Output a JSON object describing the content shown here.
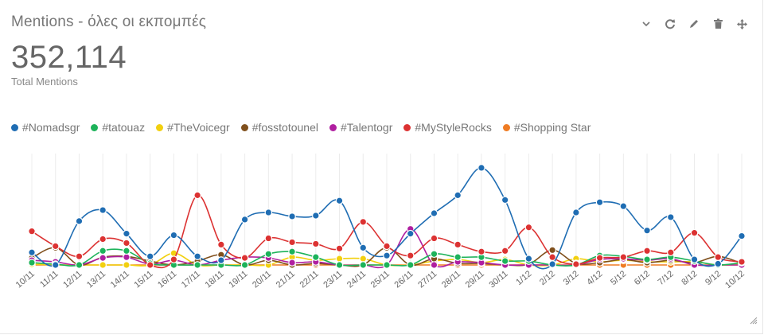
{
  "widget": {
    "title": "Mentions - όλες οι εκπομπές",
    "total": "352,114",
    "total_label": "Total Mentions",
    "tools": [
      "chevron-down-icon",
      "refresh-icon",
      "pencil-icon",
      "trash-icon",
      "move-icon"
    ]
  },
  "chart_data": {
    "type": "line",
    "title": "",
    "xlabel": "",
    "ylabel": "",
    "ylim": [
      0,
      13000
    ],
    "grid": "vertical",
    "legend_position": "top-left",
    "categories": [
      "10/11",
      "11/11",
      "12/11",
      "13/11",
      "14/11",
      "15/11",
      "16/11",
      "17/11",
      "18/11",
      "19/11",
      "20/11",
      "21/11",
      "22/11",
      "23/11",
      "24/11",
      "25/11",
      "26/11",
      "27/11",
      "28/11",
      "29/11",
      "30/11",
      "1/12",
      "2/12",
      "3/12",
      "4/12",
      "5/12",
      "6/12",
      "7/12",
      "8/12",
      "9/12",
      "10/12"
    ],
    "series": [
      {
        "name": "#Nomadsgr",
        "color": "#1f6db3",
        "values": [
          1600,
          0,
          5600,
          7000,
          4000,
          1100,
          3800,
          1100,
          600,
          5800,
          6700,
          6200,
          6300,
          8200,
          2200,
          1200,
          4000,
          6600,
          8900,
          12400,
          8300,
          800,
          100,
          6700,
          8000,
          7500,
          4400,
          6100,
          700,
          150,
          3700
        ]
      },
      {
        "name": "#tatouaz",
        "color": "#1db35a",
        "values": [
          300,
          100,
          0,
          1800,
          1800,
          200,
          0,
          0,
          0,
          0,
          1400,
          1700,
          1000,
          0,
          0,
          0,
          0,
          1400,
          1000,
          1000,
          500,
          500,
          0,
          0,
          1200,
          1100,
          700,
          1000,
          500,
          0,
          300
        ]
      },
      {
        "name": "#TheVoicegr",
        "color": "#f2d00f",
        "values": [
          100,
          0,
          0,
          0,
          0,
          0,
          1500,
          0,
          0,
          0,
          0,
          1000,
          600,
          800,
          800,
          0,
          0,
          500,
          700,
          300,
          700,
          0,
          0,
          800,
          400,
          600,
          400,
          400,
          400,
          0,
          100
        ]
      },
      {
        "name": "#fosstotounel",
        "color": "#80501d",
        "values": [
          900,
          2200,
          0,
          1000,
          1100,
          500,
          0,
          500,
          1300,
          0,
          600,
          0,
          200,
          0,
          0,
          2200,
          0,
          800,
          200,
          200,
          0,
          100,
          1900,
          200,
          300,
          700,
          300,
          600,
          300,
          1100,
          200
        ]
      },
      {
        "name": "#Talentogr",
        "color": "#b01fa0",
        "values": [
          600,
          400,
          0,
          900,
          1000,
          100,
          600,
          0,
          600,
          1000,
          900,
          300,
          400,
          0,
          0,
          0,
          4600,
          0,
          400,
          300,
          0,
          0,
          0,
          0,
          700,
          800,
          600,
          800,
          0,
          0,
          0
        ]
      },
      {
        "name": "#MyStyleRocks",
        "color": "#dc3232",
        "values": [
          4300,
          2400,
          1100,
          3300,
          2800,
          0,
          700,
          8900,
          2600,
          900,
          3400,
          2900,
          2700,
          2100,
          5500,
          2400,
          1200,
          3400,
          2600,
          1700,
          1800,
          4800,
          1000,
          100,
          900,
          1000,
          1800,
          1600,
          4100,
          1000,
          400
        ]
      },
      {
        "name": "#Shopping Star",
        "color": "#ef7c24",
        "values": [
          0,
          0,
          0,
          0,
          0,
          0,
          0,
          0,
          0,
          0,
          0,
          0,
          0,
          0,
          0,
          0,
          0,
          0,
          0,
          0,
          0,
          0,
          0,
          0,
          0,
          0,
          0,
          0,
          0,
          0,
          0
        ]
      }
    ]
  }
}
